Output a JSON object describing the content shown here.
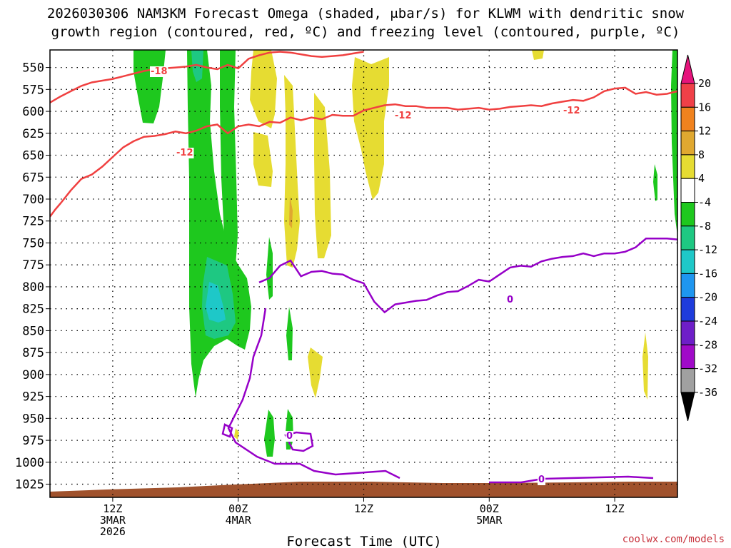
{
  "chart_data": {
    "type": "heatmap",
    "title_line1": "2026030306 NAM3KM Forecast Omega (shaded, μbar/s) for KLWM with dendritic snow",
    "title_line2": "growth region (contoured, red, ºC) and freezing level (contoured, purple, ºC)",
    "xlabel": "Forecast Time (UTC)",
    "credit": "coolwx.com/models",
    "x_unit": "forecast hour",
    "xlim": [
      0,
      60
    ],
    "ylim_hPa": [
      1040,
      530
    ],
    "y_ticks": [
      550,
      575,
      600,
      625,
      650,
      675,
      700,
      725,
      750,
      775,
      800,
      825,
      850,
      875,
      900,
      925,
      950,
      975,
      1000,
      1025
    ],
    "x_ticks": [
      {
        "hour": 6,
        "lines": [
          "12Z",
          "3MAR",
          "2026"
        ]
      },
      {
        "hour": 18,
        "lines": [
          "00Z",
          "4MAR"
        ]
      },
      {
        "hour": 30,
        "lines": [
          "12Z"
        ]
      },
      {
        "hour": 42,
        "lines": [
          "00Z",
          "5MAR"
        ]
      },
      {
        "hour": 54,
        "lines": [
          "12Z"
        ]
      }
    ],
    "colorbar": {
      "labels": [
        "20",
        "16",
        "12",
        "8",
        "4",
        "-4",
        "-8",
        "-12",
        "-16",
        "-20",
        "-24",
        "-28",
        "-32",
        "-36"
      ],
      "levels": [
        20,
        16,
        12,
        8,
        4,
        -4,
        -8,
        -12,
        -16,
        -20,
        -24,
        -28,
        -32,
        -36
      ],
      "colors": [
        "#f04048",
        "#f0821e",
        "#e0a830",
        "#e6dc32",
        "#ffffff",
        "#1ec81e",
        "#1ec882",
        "#1ec8c8",
        "#1e96f0",
        "#1e3cdc",
        "#6e1ec8",
        "#a00ac8",
        "#a0a0a0"
      ],
      "top_arrow_color": "#e6147c",
      "bottom_arrow_color": "#000000"
    },
    "contour_labels": {
      "dgz_upper": "-18",
      "dgz_lower": "-12",
      "freezing": "0"
    },
    "colors": {
      "dgz_contour": "#f04040",
      "freezing_contour": "#9600c8",
      "terrain": "#a0522d",
      "grid": "#000000"
    },
    "series": [
      {
        "name": "dgz_upper_-18C",
        "hours": [
          0,
          1,
          2,
          3,
          4,
          5,
          6,
          7,
          8,
          9,
          10,
          11,
          12,
          13,
          14,
          15,
          16,
          17,
          18,
          19,
          20,
          21,
          22,
          23,
          24,
          25,
          26,
          27,
          28,
          29,
          30
        ],
        "pressure": [
          590,
          583,
          577,
          571,
          567,
          565,
          563,
          560,
          557,
          554,
          552,
          551,
          550,
          549,
          547,
          550,
          552,
          547,
          551,
          540,
          536,
          533,
          532,
          533,
          535,
          537,
          538,
          537,
          536,
          534,
          532
        ]
      },
      {
        "name": "dgz_lower_-12C",
        "hours": [
          0,
          0.5,
          1,
          2,
          3,
          4,
          5,
          6,
          7,
          8,
          9,
          10,
          11,
          12,
          13,
          14,
          15,
          16,
          17,
          18,
          19,
          20,
          21,
          22,
          23,
          24,
          25,
          26,
          27,
          28,
          29,
          30,
          31,
          32,
          33,
          34,
          35,
          36,
          37,
          38,
          39,
          40,
          41,
          42,
          43,
          44,
          45,
          46,
          47,
          48,
          49,
          50,
          51,
          52,
          53,
          54,
          55,
          56,
          57,
          58,
          59,
          60
        ],
        "pressure": [
          720,
          712,
          705,
          690,
          677,
          672,
          663,
          652,
          641,
          634,
          629,
          628,
          626,
          623,
          625,
          622,
          617,
          615,
          625,
          617,
          615,
          617,
          612,
          613,
          607,
          610,
          607,
          609,
          604,
          605,
          605,
          599,
          596,
          593,
          592,
          594,
          594,
          596,
          596,
          596,
          598,
          597,
          596,
          598,
          597,
          595,
          594,
          593,
          594,
          591,
          589,
          587,
          588,
          584,
          577,
          574,
          573,
          580,
          578,
          581,
          580,
          577
        ]
      },
      {
        "name": "freezing_level_0C",
        "hours": [
          20,
          21,
          22,
          23,
          24,
          25,
          26,
          27,
          28,
          29,
          30,
          31,
          32,
          33,
          34,
          35,
          36,
          37,
          38,
          39,
          40,
          41,
          42,
          43,
          44,
          45,
          46,
          47,
          48,
          49,
          50,
          51,
          52,
          53,
          54,
          55,
          56,
          57,
          58,
          59,
          60
        ],
        "pressure": [
          795,
          790,
          776,
          770,
          788,
          783,
          782,
          785,
          786,
          792,
          796,
          817,
          829,
          820,
          818,
          816,
          815,
          810,
          806,
          805,
          799,
          792,
          794,
          786,
          778,
          776,
          777,
          771,
          768,
          766,
          765,
          762,
          765,
          762,
          762,
          760,
          755,
          745,
          745,
          745,
          746
        ]
      }
    ]
  }
}
